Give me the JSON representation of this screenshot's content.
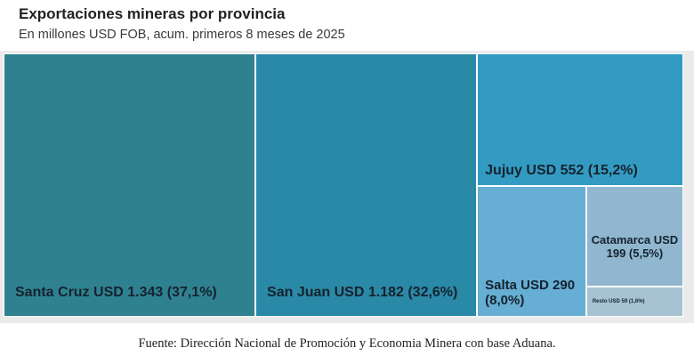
{
  "title": "Exportaciones mineras por provincia",
  "subtitle": "En millones USD FOB, acum. primeros 8 meses de 2025",
  "source": "Fuente: Dirección Nacional de Promoción y Economia Minera con base Aduana.",
  "chart_data": {
    "type": "treemap",
    "unit": "millones USD FOB",
    "items": [
      {
        "name": "Santa Cruz",
        "value": 1343,
        "share": 37.1,
        "label": "Santa Cruz USD 1.343 (37,1%)",
        "color": "#2f8190"
      },
      {
        "name": "San Juan",
        "value": 1182,
        "share": 32.6,
        "label": "San Juan USD 1.182 (32,6%)",
        "color": "#2a89a6"
      },
      {
        "name": "Jujuy",
        "value": 552,
        "share": 15.2,
        "label": "Jujuy USD 552 (15,2%)",
        "color": "#339bc2"
      },
      {
        "name": "Salta",
        "value": 290,
        "share": 8.0,
        "label": "Salta USD 290 (8,0%)",
        "color": "#66aed3"
      },
      {
        "name": "Catamarca",
        "value": 199,
        "share": 5.5,
        "label": "Catamarca USD 199 (5,5%)",
        "color": "#90b7cf"
      },
      {
        "name": "Resto",
        "value": 59,
        "share": 1.6,
        "label": "Resto USD 59 (1,6%)",
        "color": "#a6c2d3"
      }
    ]
  }
}
